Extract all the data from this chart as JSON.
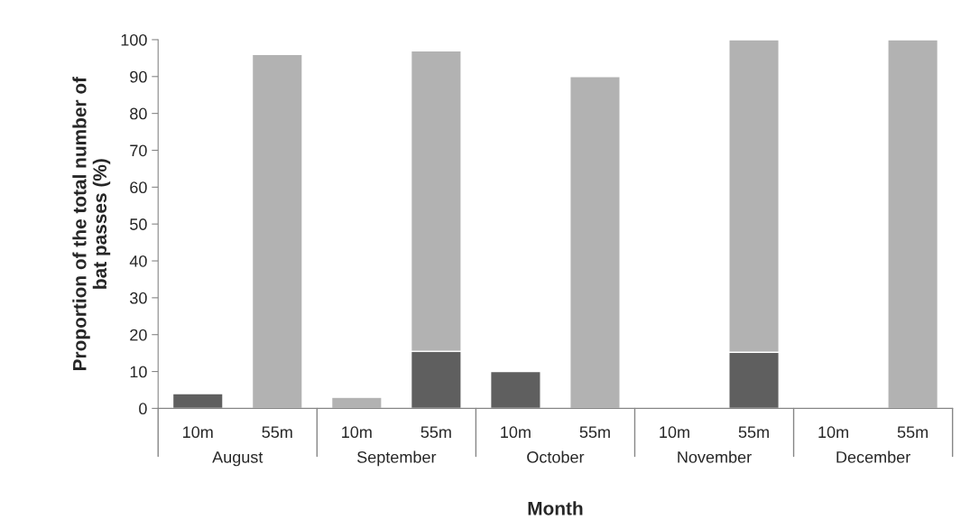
{
  "chart_data": {
    "type": "bar",
    "stacked": true,
    "xlabel": "Month",
    "ylabel": "Proportion of the total number of\nbat passes (%)",
    "categories": [
      "10m",
      "55m",
      "10m",
      "55m",
      "10m",
      "55m",
      "10m",
      "55m",
      "10m",
      "55m"
    ],
    "series": [
      {
        "color": "#5f5f5f",
        "values": [
          4,
          null,
          null,
          15.5,
          10,
          null,
          null,
          15.2,
          null,
          null
        ]
      },
      {
        "color": "#b2b2b2",
        "values": [
          null,
          96,
          3,
          81.5,
          null,
          90,
          null,
          84.8,
          null,
          100
        ]
      }
    ],
    "annotations": [
      "August",
      "September",
      "October",
      "November",
      "December"
    ],
    "ylim": [
      0,
      100
    ],
    "yticks": [
      0,
      10,
      20,
      30,
      40,
      50,
      60,
      70,
      80,
      90,
      100
    ],
    "grid": false,
    "legend": false
  }
}
